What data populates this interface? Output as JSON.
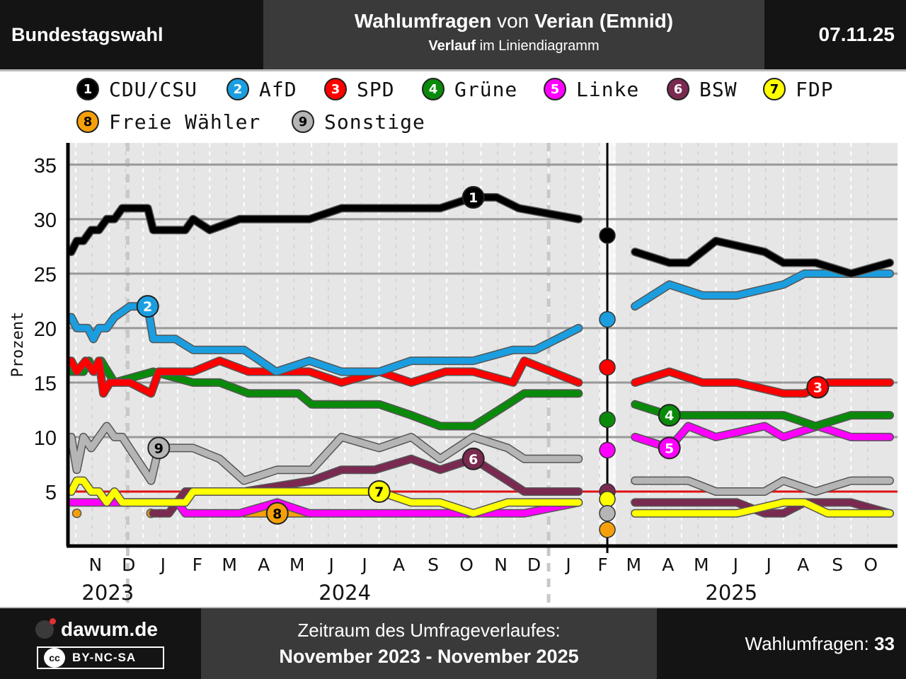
{
  "header": {
    "left": "Bundestagswahl",
    "title_bold1": "Wahlumfragen",
    "title_mid": " von ",
    "title_bold2": "Verian (Emnid)",
    "sub_bold": "Verlauf",
    "sub_rest": " im Liniendiagramm",
    "date": "07.11.25"
  },
  "legend": [
    {
      "num": "1",
      "label": "CDU/CSU",
      "color": "#000000",
      "text": "#ffffff"
    },
    {
      "num": "2",
      "label": "AfD",
      "color": "#1b9ee0",
      "text": "#ffffff"
    },
    {
      "num": "3",
      "label": "SPD",
      "color": "#ff0000",
      "text": "#ffffff"
    },
    {
      "num": "4",
      "label": "Grüne",
      "color": "#0a8a0a",
      "text": "#ffffff"
    },
    {
      "num": "5",
      "label": "Linke",
      "color": "#ff00ff",
      "text": "#ffffff"
    },
    {
      "num": "6",
      "label": "BSW",
      "color": "#7a2a50",
      "text": "#ffffff"
    },
    {
      "num": "7",
      "label": "FDP",
      "color": "#ffff00",
      "text": "#000000"
    },
    {
      "num": "8",
      "label": "Freie Wähler",
      "color": "#f5a00a",
      "text": "#000000"
    },
    {
      "num": "9",
      "label": "Sonstige",
      "color": "#b5b5b5",
      "text": "#000000"
    }
  ],
  "chart_data": {
    "type": "line",
    "ylabel": "Prozent",
    "yticks": [
      5,
      10,
      15,
      20,
      25,
      30,
      35
    ],
    "ylim": [
      0,
      37
    ],
    "threshold": 5,
    "election_date": "2025-02-23",
    "month_labels": [
      {
        "date": "2023-11-01",
        "label": "N"
      },
      {
        "date": "2023-12-01",
        "label": "D"
      },
      {
        "date": "2024-01-01",
        "label": "J"
      },
      {
        "date": "2024-02-01",
        "label": "F"
      },
      {
        "date": "2024-03-01",
        "label": "M"
      },
      {
        "date": "2024-04-01",
        "label": "A"
      },
      {
        "date": "2024-05-01",
        "label": "M"
      },
      {
        "date": "2024-06-01",
        "label": "J"
      },
      {
        "date": "2024-07-01",
        "label": "J"
      },
      {
        "date": "2024-08-01",
        "label": "A"
      },
      {
        "date": "2024-09-01",
        "label": "S"
      },
      {
        "date": "2024-10-01",
        "label": "O"
      },
      {
        "date": "2024-11-01",
        "label": "N"
      },
      {
        "date": "2024-12-01",
        "label": "D"
      },
      {
        "date": "2025-01-01",
        "label": "J"
      },
      {
        "date": "2025-02-01",
        "label": "F"
      },
      {
        "date": "2025-03-01",
        "label": "M"
      },
      {
        "date": "2025-04-01",
        "label": "A"
      },
      {
        "date": "2025-05-01",
        "label": "M"
      },
      {
        "date": "2025-06-01",
        "label": "J"
      },
      {
        "date": "2025-07-01",
        "label": "J"
      },
      {
        "date": "2025-08-01",
        "label": "A"
      },
      {
        "date": "2025-09-01",
        "label": "S"
      },
      {
        "date": "2025-10-01",
        "label": "O"
      }
    ],
    "year_labels": [
      {
        "date": "2023-11-30",
        "label": "2023"
      },
      {
        "date": "2024-07-01",
        "label": "2024"
      },
      {
        "date": "2025-06-15",
        "label": "2025"
      }
    ],
    "series": [
      {
        "name": "CDU/CSU",
        "color": "#000000",
        "points": [
          [
            "2023-10-28",
            27
          ],
          [
            "2023-11-02",
            28
          ],
          [
            "2023-11-08",
            28
          ],
          [
            "2023-11-15",
            29
          ],
          [
            "2023-11-22",
            29
          ],
          [
            "2023-11-29",
            30
          ],
          [
            "2023-12-06",
            30
          ],
          [
            "2023-12-13",
            31
          ],
          [
            "2023-12-20",
            31
          ],
          [
            "2024-01-05",
            31
          ],
          [
            "2024-01-10",
            29
          ],
          [
            "2024-01-25",
            29
          ],
          [
            "2024-02-08",
            29
          ],
          [
            "2024-02-15",
            30
          ],
          [
            "2024-03-01",
            29
          ],
          [
            "2024-03-28",
            30
          ],
          [
            "2024-05-30",
            30
          ],
          [
            "2024-06-28",
            31
          ],
          [
            "2024-09-25",
            31
          ],
          [
            "2024-10-25",
            32
          ],
          [
            "2024-11-15",
            32
          ],
          [
            "2024-12-05",
            31
          ],
          [
            "2025-01-28",
            30
          ]
        ],
        "election_value": 28.5,
        "label_at": "2024-10-25",
        "post": [
          [
            "2025-03-20",
            27
          ],
          [
            "2025-04-20",
            26
          ],
          [
            "2025-05-07",
            26
          ],
          [
            "2025-06-01",
            28
          ],
          [
            "2025-07-15",
            27
          ],
          [
            "2025-08-01",
            26
          ],
          [
            "2025-08-30",
            26
          ],
          [
            "2025-10-01",
            25
          ],
          [
            "2025-11-05",
            26
          ]
        ]
      },
      {
        "name": "AfD",
        "color": "#1b9ee0",
        "points": [
          [
            "2023-10-28",
            21
          ],
          [
            "2023-11-02",
            20
          ],
          [
            "2023-11-12",
            20
          ],
          [
            "2023-11-17",
            19
          ],
          [
            "2023-11-22",
            20
          ],
          [
            "2023-11-29",
            20
          ],
          [
            "2023-12-06",
            21
          ],
          [
            "2023-12-20",
            22
          ],
          [
            "2024-01-05",
            22
          ],
          [
            "2024-01-10",
            19
          ],
          [
            "2024-01-30",
            19
          ],
          [
            "2024-02-15",
            18
          ],
          [
            "2024-04-01",
            18
          ],
          [
            "2024-04-30",
            16
          ],
          [
            "2024-05-30",
            17
          ],
          [
            "2024-06-28",
            16
          ],
          [
            "2024-08-01",
            16
          ],
          [
            "2024-08-30",
            17
          ],
          [
            "2024-10-25",
            17
          ],
          [
            "2024-11-30",
            18
          ],
          [
            "2024-12-20",
            18
          ],
          [
            "2025-01-28",
            20
          ]
        ],
        "election_value": 20.8,
        "label_at": "2024-01-05",
        "post": [
          [
            "2025-03-20",
            22
          ],
          [
            "2025-04-20",
            24
          ],
          [
            "2025-05-20",
            23
          ],
          [
            "2025-06-20",
            23
          ],
          [
            "2025-08-01",
            24
          ],
          [
            "2025-08-20",
            25
          ],
          [
            "2025-11-05",
            25
          ]
        ]
      },
      {
        "name": "SPD",
        "color": "#ff0000",
        "points": [
          [
            "2023-10-28",
            17
          ],
          [
            "2023-11-02",
            16
          ],
          [
            "2023-11-10",
            17
          ],
          [
            "2023-11-17",
            16
          ],
          [
            "2023-11-22",
            17
          ],
          [
            "2023-11-26",
            14
          ],
          [
            "2023-12-02",
            15
          ],
          [
            "2023-12-20",
            15
          ],
          [
            "2024-01-08",
            14
          ],
          [
            "2024-01-15",
            16
          ],
          [
            "2024-02-15",
            16
          ],
          [
            "2024-03-10",
            17
          ],
          [
            "2024-04-05",
            16
          ],
          [
            "2024-05-30",
            16
          ],
          [
            "2024-06-28",
            15
          ],
          [
            "2024-08-01",
            16
          ],
          [
            "2024-08-30",
            15
          ],
          [
            "2024-09-30",
            16
          ],
          [
            "2024-10-25",
            16
          ],
          [
            "2024-11-30",
            15
          ],
          [
            "2024-12-10",
            17
          ],
          [
            "2025-01-28",
            15
          ]
        ],
        "election_value": 16.4,
        "label_at": "2025-09-01",
        "post": [
          [
            "2025-03-20",
            15
          ],
          [
            "2025-04-20",
            16
          ],
          [
            "2025-05-20",
            15
          ],
          [
            "2025-06-20",
            15
          ],
          [
            "2025-08-01",
            14
          ],
          [
            "2025-08-20",
            14
          ],
          [
            "2025-09-10",
            15
          ],
          [
            "2025-11-05",
            15
          ]
        ]
      },
      {
        "name": "Grüne",
        "color": "#0a8a0a",
        "points": [
          [
            "2023-10-28",
            16
          ],
          [
            "2023-11-08",
            16
          ],
          [
            "2023-11-13",
            17
          ],
          [
            "2023-11-18",
            16
          ],
          [
            "2023-11-24",
            17
          ],
          [
            "2023-12-06",
            15
          ],
          [
            "2024-01-10",
            16
          ],
          [
            "2024-02-15",
            15
          ],
          [
            "2024-03-10",
            15
          ],
          [
            "2024-04-05",
            14
          ],
          [
            "2024-05-20",
            14
          ],
          [
            "2024-06-01",
            13
          ],
          [
            "2024-08-01",
            13
          ],
          [
            "2024-08-30",
            12
          ],
          [
            "2024-09-25",
            11
          ],
          [
            "2024-10-25",
            11
          ],
          [
            "2024-11-25",
            13
          ],
          [
            "2024-12-10",
            14
          ],
          [
            "2025-01-28",
            14
          ]
        ],
        "election_value": 11.6,
        "label_at": "2025-04-20",
        "post": [
          [
            "2025-03-20",
            13
          ],
          [
            "2025-04-20",
            12
          ],
          [
            "2025-05-20",
            12
          ],
          [
            "2025-08-01",
            12
          ],
          [
            "2025-08-30",
            11
          ],
          [
            "2025-10-01",
            12
          ],
          [
            "2025-11-05",
            12
          ]
        ]
      },
      {
        "name": "Linke",
        "color": "#ff00ff",
        "points": [
          [
            "2023-10-28",
            4
          ],
          [
            "2024-02-01",
            4
          ],
          [
            "2024-02-08",
            3
          ],
          [
            "2024-03-28",
            3
          ],
          [
            "2024-05-01",
            4
          ],
          [
            "2024-05-30",
            3
          ],
          [
            "2024-12-10",
            3
          ],
          [
            "2025-01-28",
            4
          ]
        ],
        "election_value": 8.8,
        "label_at": "2025-04-20",
        "post": [
          [
            "2025-03-20",
            10
          ],
          [
            "2025-04-20",
            9
          ],
          [
            "2025-05-07",
            11
          ],
          [
            "2025-06-01",
            10
          ],
          [
            "2025-07-15",
            11
          ],
          [
            "2025-08-01",
            10
          ],
          [
            "2025-09-01",
            11
          ],
          [
            "2025-10-01",
            10
          ],
          [
            "2025-11-05",
            10
          ]
        ]
      },
      {
        "name": "BSW",
        "color": "#7a2a50",
        "points": [
          [
            "2024-01-10",
            3
          ],
          [
            "2024-01-24",
            3
          ],
          [
            "2024-02-08",
            5
          ],
          [
            "2024-03-01",
            5
          ],
          [
            "2024-04-01",
            5
          ],
          [
            "2024-06-01",
            6
          ],
          [
            "2024-06-28",
            7
          ],
          [
            "2024-07-28",
            7
          ],
          [
            "2024-08-30",
            8
          ],
          [
            "2024-09-25",
            7
          ],
          [
            "2024-10-25",
            8
          ],
          [
            "2024-11-25",
            6
          ],
          [
            "2024-12-10",
            5
          ],
          [
            "2025-01-28",
            5
          ]
        ],
        "election_value": 5.0,
        "label_at": "2024-10-25",
        "post": [
          [
            "2025-03-20",
            4
          ],
          [
            "2025-06-20",
            4
          ],
          [
            "2025-07-15",
            3
          ],
          [
            "2025-08-01",
            3
          ],
          [
            "2025-08-20",
            4
          ],
          [
            "2025-10-01",
            4
          ],
          [
            "2025-11-05",
            3
          ]
        ]
      },
      {
        "name": "FDP",
        "color": "#ffff00",
        "points": [
          [
            "2023-10-28",
            5
          ],
          [
            "2023-11-02",
            6
          ],
          [
            "2023-11-08",
            6
          ],
          [
            "2023-11-15",
            5
          ],
          [
            "2023-11-22",
            5
          ],
          [
            "2023-11-29",
            4
          ],
          [
            "2023-12-06",
            5
          ],
          [
            "2023-12-13",
            4
          ],
          [
            "2024-02-08",
            4
          ],
          [
            "2024-02-15",
            5
          ],
          [
            "2024-08-01",
            5
          ],
          [
            "2024-08-30",
            4
          ],
          [
            "2024-09-25",
            4
          ],
          [
            "2024-10-25",
            3
          ],
          [
            "2024-11-25",
            4
          ],
          [
            "2025-01-28",
            4
          ]
        ],
        "election_value": 4.3,
        "label_at": "2024-08-01",
        "post": [
          [
            "2025-03-20",
            3
          ],
          [
            "2025-06-20",
            3
          ],
          [
            "2025-08-01",
            4
          ],
          [
            "2025-08-20",
            4
          ],
          [
            "2025-09-10",
            3
          ],
          [
            "2025-11-05",
            3
          ]
        ]
      },
      {
        "name": "Freie Wähler",
        "color": "#f5a00a",
        "points": [
          [
            "2024-04-01",
            3
          ],
          [
            "2024-06-01",
            3
          ]
        ],
        "points_extra": [
          [
            "2023-11-02",
            3
          ],
          [
            "2024-01-08",
            3
          ],
          [
            "2024-10-20",
            3
          ]
        ],
        "election_value": 1.5,
        "label_at": "2024-05-01",
        "post": []
      },
      {
        "name": "Sonstige",
        "color": "#b5b5b5",
        "points": [
          [
            "2023-10-28",
            10
          ],
          [
            "2023-11-02",
            7
          ],
          [
            "2023-11-08",
            10
          ],
          [
            "2023-11-15",
            9
          ],
          [
            "2023-11-22",
            10
          ],
          [
            "2023-11-29",
            11
          ],
          [
            "2023-12-06",
            10
          ],
          [
            "2023-12-13",
            10
          ],
          [
            "2024-01-08",
            6
          ],
          [
            "2024-01-15",
            9
          ],
          [
            "2024-02-15",
            9
          ],
          [
            "2024-03-10",
            8
          ],
          [
            "2024-04-01",
            6
          ],
          [
            "2024-05-01",
            7
          ],
          [
            "2024-06-01",
            7
          ],
          [
            "2024-06-28",
            10
          ],
          [
            "2024-08-01",
            9
          ],
          [
            "2024-08-30",
            10
          ],
          [
            "2024-09-25",
            8
          ],
          [
            "2024-10-25",
            10
          ],
          [
            "2024-11-25",
            9
          ],
          [
            "2024-12-10",
            8
          ],
          [
            "2025-01-28",
            8
          ]
        ],
        "election_value": 3.0,
        "label_at": "2024-01-15",
        "post": [
          [
            "2025-03-20",
            6
          ],
          [
            "2025-05-07",
            6
          ],
          [
            "2025-06-01",
            5
          ],
          [
            "2025-07-15",
            5
          ],
          [
            "2025-08-01",
            6
          ],
          [
            "2025-08-30",
            5
          ],
          [
            "2025-10-01",
            6
          ],
          [
            "2025-11-05",
            6
          ]
        ]
      }
    ]
  },
  "footer": {
    "brand": "dawum.de",
    "license": "BY-NC-SA",
    "license_logo": "cc",
    "period_label": "Zeitraum des Umfrageverlaufes:",
    "period_value": "November 2023 - November 2025",
    "count_label": "Wahlumfragen:",
    "count_value": "33"
  }
}
